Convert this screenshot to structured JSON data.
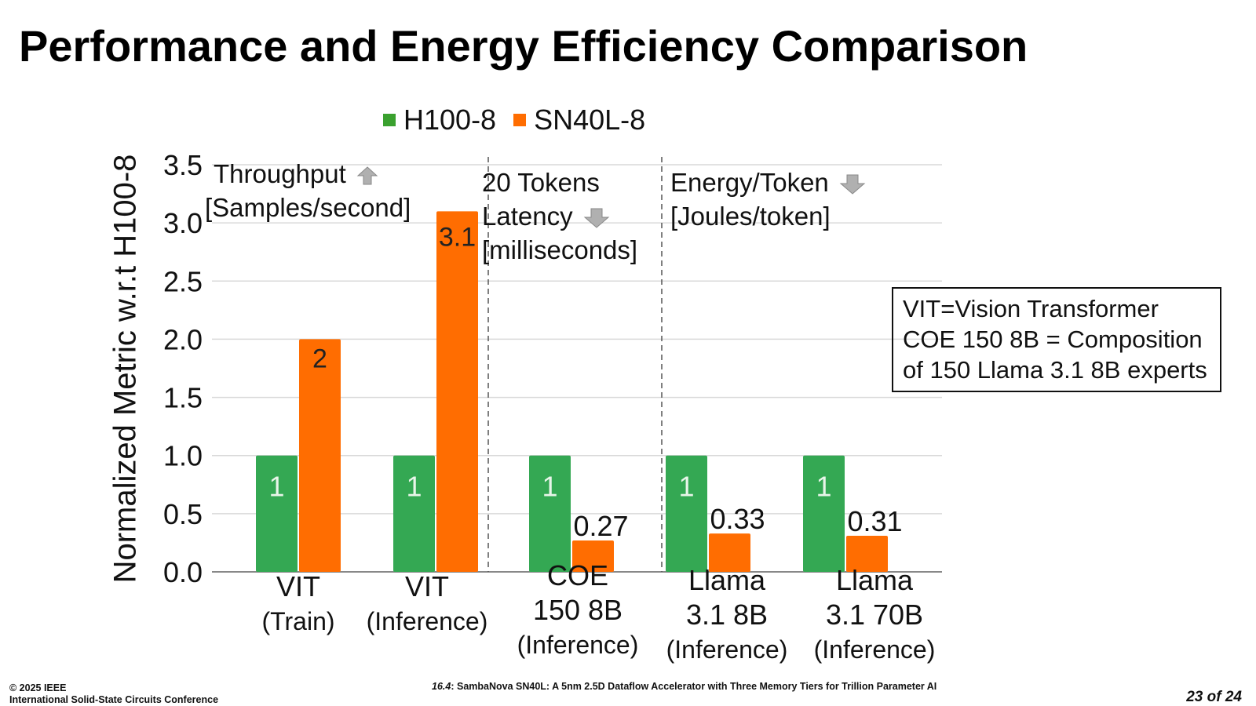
{
  "slide": {
    "title": "Performance and Energy Efficiency Comparison",
    "footer": {
      "copyright": "© 2025 IEEE",
      "conference": "International Solid-State Circuits Conference",
      "session": "16.4",
      "paper_title": ": SambaNova SN40L: A 5nm 2.5D Dataflow Accelerator with Three Memory Tiers for Trillion Parameter AI",
      "page": "23 of 24"
    }
  },
  "chart_data": {
    "type": "bar",
    "title": "",
    "xlabel": "",
    "ylabel": "Normalized Metric w.r.t H100-8",
    "ylim": [
      0,
      3.5
    ],
    "yticks": [
      "0.0",
      "0.5",
      "1.0",
      "1.5",
      "2.0",
      "2.5",
      "3.0",
      "3.5"
    ],
    "grid": true,
    "legend_position": "top",
    "categories": [
      {
        "line1": "VIT",
        "line2": "(Train)",
        "line3": ""
      },
      {
        "line1": "VIT",
        "line2": "(Inference)",
        "line3": ""
      },
      {
        "line1": "COE",
        "line2": "150 8B",
        "line3": "(Inference)"
      },
      {
        "line1": "Llama",
        "line2": "3.1 8B",
        "line3": "(Inference)"
      },
      {
        "line1": "Llama",
        "line2": "3.1 70B",
        "line3": "(Inference)"
      }
    ],
    "series": [
      {
        "name": "H100-8",
        "color": "#34a853",
        "values": [
          1,
          1,
          1,
          1,
          1
        ],
        "labels": [
          "1",
          "1",
          "1",
          "1",
          "1"
        ]
      },
      {
        "name": "SN40L-8",
        "color": "#ff6d01",
        "values": [
          2,
          3.1,
          0.27,
          0.33,
          0.31
        ],
        "labels": [
          "2",
          "3.1",
          "0.27",
          "0.33",
          "0.31"
        ]
      }
    ],
    "annotations": {
      "throughput": {
        "line1": "Throughput",
        "line2": "[Samples/second]",
        "direction": "up"
      },
      "latency": {
        "line1": "20 Tokens",
        "line2": "Latency",
        "line3": "[milliseconds]",
        "direction": "down"
      },
      "energy": {
        "line1": "Energy/Token",
        "line2": "[Joules/token]",
        "direction": "down"
      }
    },
    "note": {
      "line1": "VIT=Vision Transformer",
      "line2": "COE 150 8B = Composition",
      "line3": "of 150 Llama 3.1 8B experts"
    }
  }
}
